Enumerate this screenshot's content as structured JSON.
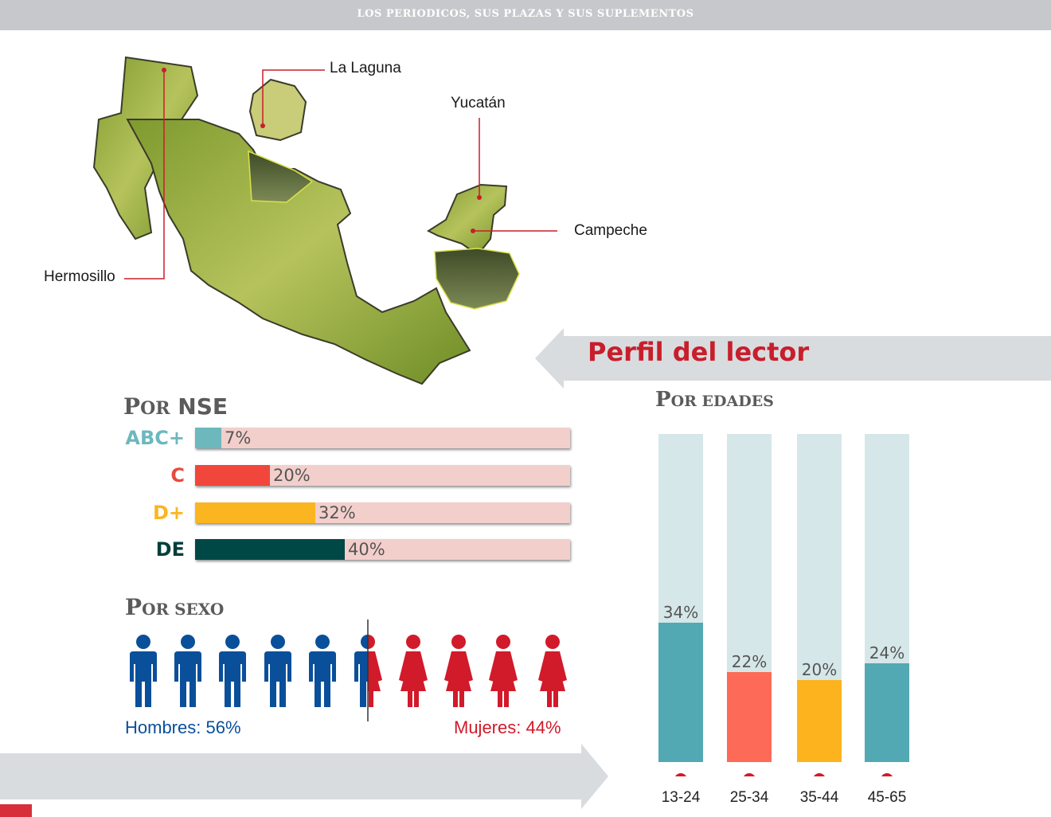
{
  "header": {
    "title": "LOS PERIODICOS, SUS PLAZAS Y SUS SUPLEMENTOS"
  },
  "map": {
    "labels": {
      "la_laguna": "La Laguna",
      "yucatan": "Yucatán",
      "campeche": "Campeche",
      "hermosillo": "Hermosillo"
    },
    "colors": {
      "land": "#8fa83a",
      "marker_line": "#c81e2b"
    }
  },
  "banner": {
    "title": "Perfil del lector"
  },
  "nse": {
    "title": "Por NSE",
    "title_cap": "P",
    "title_small": "OR",
    "title_rest": "NSE"
  },
  "sexo": {
    "title_cap": "P",
    "title_small": "OR SEXO",
    "hombres_label": "Hombres: 56%",
    "mujeres_label": "Mujeres: 44%",
    "colors": {
      "men": "#0a4f9a",
      "women": "#d11a2a"
    }
  },
  "edades": {
    "title_cap": "P",
    "title_small": "OR EDADES"
  },
  "chart_data": [
    {
      "type": "bar",
      "orientation": "horizontal",
      "title": "Por NSE",
      "categories": [
        "ABC+",
        "C",
        "D+",
        "DE"
      ],
      "values": [
        7,
        20,
        32,
        40
      ],
      "labels": [
        "7%",
        "20%",
        "32%",
        "40%"
      ],
      "colors": [
        "#6cb8bd",
        "#f1463c",
        "#fbb521",
        "#004845"
      ],
      "label_colors": [
        "#6cb8bd",
        "#e84a3c",
        "#fbb521",
        "#003f3c"
      ],
      "track_color": "#f3cfcc",
      "xlim": [
        0,
        100
      ]
    },
    {
      "type": "bar",
      "title": "Por edades",
      "categories": [
        "13-24",
        "25-34",
        "35-44",
        "45-65"
      ],
      "values": [
        34,
        22,
        20,
        24
      ],
      "labels": [
        "34%",
        "22%",
        "20%",
        "24%"
      ],
      "colors": [
        "#52a9b4",
        "#fd6a57",
        "#fdb31e",
        "#52a9b4"
      ],
      "track_color": "#d6e7e9",
      "marker_color": "#d11a2a",
      "ylim": [
        0,
        80
      ]
    },
    {
      "type": "pictograph",
      "title": "Por sexo",
      "categories": [
        "Hombres",
        "Mujeres"
      ],
      "values": [
        56,
        44
      ],
      "icons_total": 10
    }
  ]
}
